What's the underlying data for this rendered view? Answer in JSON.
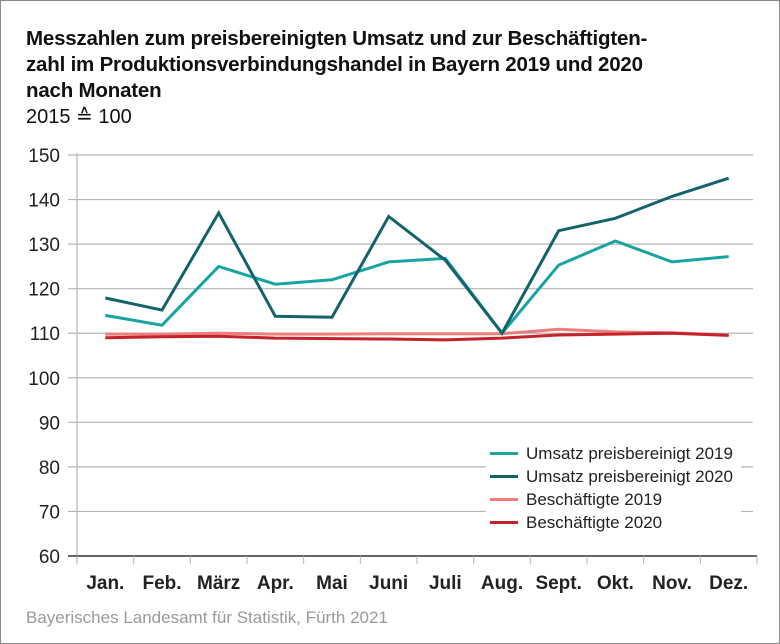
{
  "title_lines": [
    "Messzahlen zum preisbereinigten Umsatz und zur Beschäftigten-",
    "zahl im Produktionsverbindungshandel in Bayern 2019 und 2020",
    "nach Monaten"
  ],
  "subtitle": "2015 ≙ 100",
  "source": "Bayerisches Landesamt für Statistik, Fürth 2021",
  "chart_data": {
    "type": "line",
    "title": "Messzahlen zum preisbereinigten Umsatz und zur Beschäftigtenzahl im Produktionsverbindungshandel in Bayern 2019 und 2020 nach Monaten",
    "subtitle": "2015 ≙ 100",
    "xlabel": "",
    "ylabel": "",
    "categories": [
      "Jan.",
      "Feb.",
      "März",
      "Apr.",
      "Mai",
      "Juni",
      "Juli",
      "Aug.",
      "Sept.",
      "Okt.",
      "Nov.",
      "Dez."
    ],
    "ylim": [
      60,
      150
    ],
    "yticks": [
      60,
      70,
      80,
      90,
      100,
      110,
      120,
      130,
      140,
      150
    ],
    "grid": true,
    "legend_position": "bottom-right",
    "series": [
      {
        "name": "Umsatz preisbereinigt 2019",
        "color": "#1aa3a3",
        "values": [
          114.0,
          111.8,
          125.0,
          121.0,
          122.0,
          126.0,
          126.8,
          110.0,
          125.3,
          130.7,
          126.0,
          127.2
        ]
      },
      {
        "name": "Umsatz preisbereinigt 2020",
        "color": "#12646a",
        "values": [
          117.9,
          115.2,
          137.0,
          113.8,
          113.6,
          136.2,
          126.4,
          110.0,
          133.0,
          135.8,
          140.7,
          144.8
        ]
      },
      {
        "name": "Beschäftigte 2019",
        "color": "#ec7f7a",
        "values": [
          109.8,
          109.8,
          110.0,
          109.8,
          109.8,
          109.9,
          109.9,
          109.9,
          110.9,
          110.3,
          110.1,
          109.6
        ]
      },
      {
        "name": "Beschäftigte 2020",
        "color": "#c4232b",
        "values": [
          109.0,
          109.2,
          109.3,
          108.9,
          108.8,
          108.7,
          108.5,
          108.9,
          109.6,
          109.8,
          110.0,
          109.5
        ]
      }
    ]
  }
}
